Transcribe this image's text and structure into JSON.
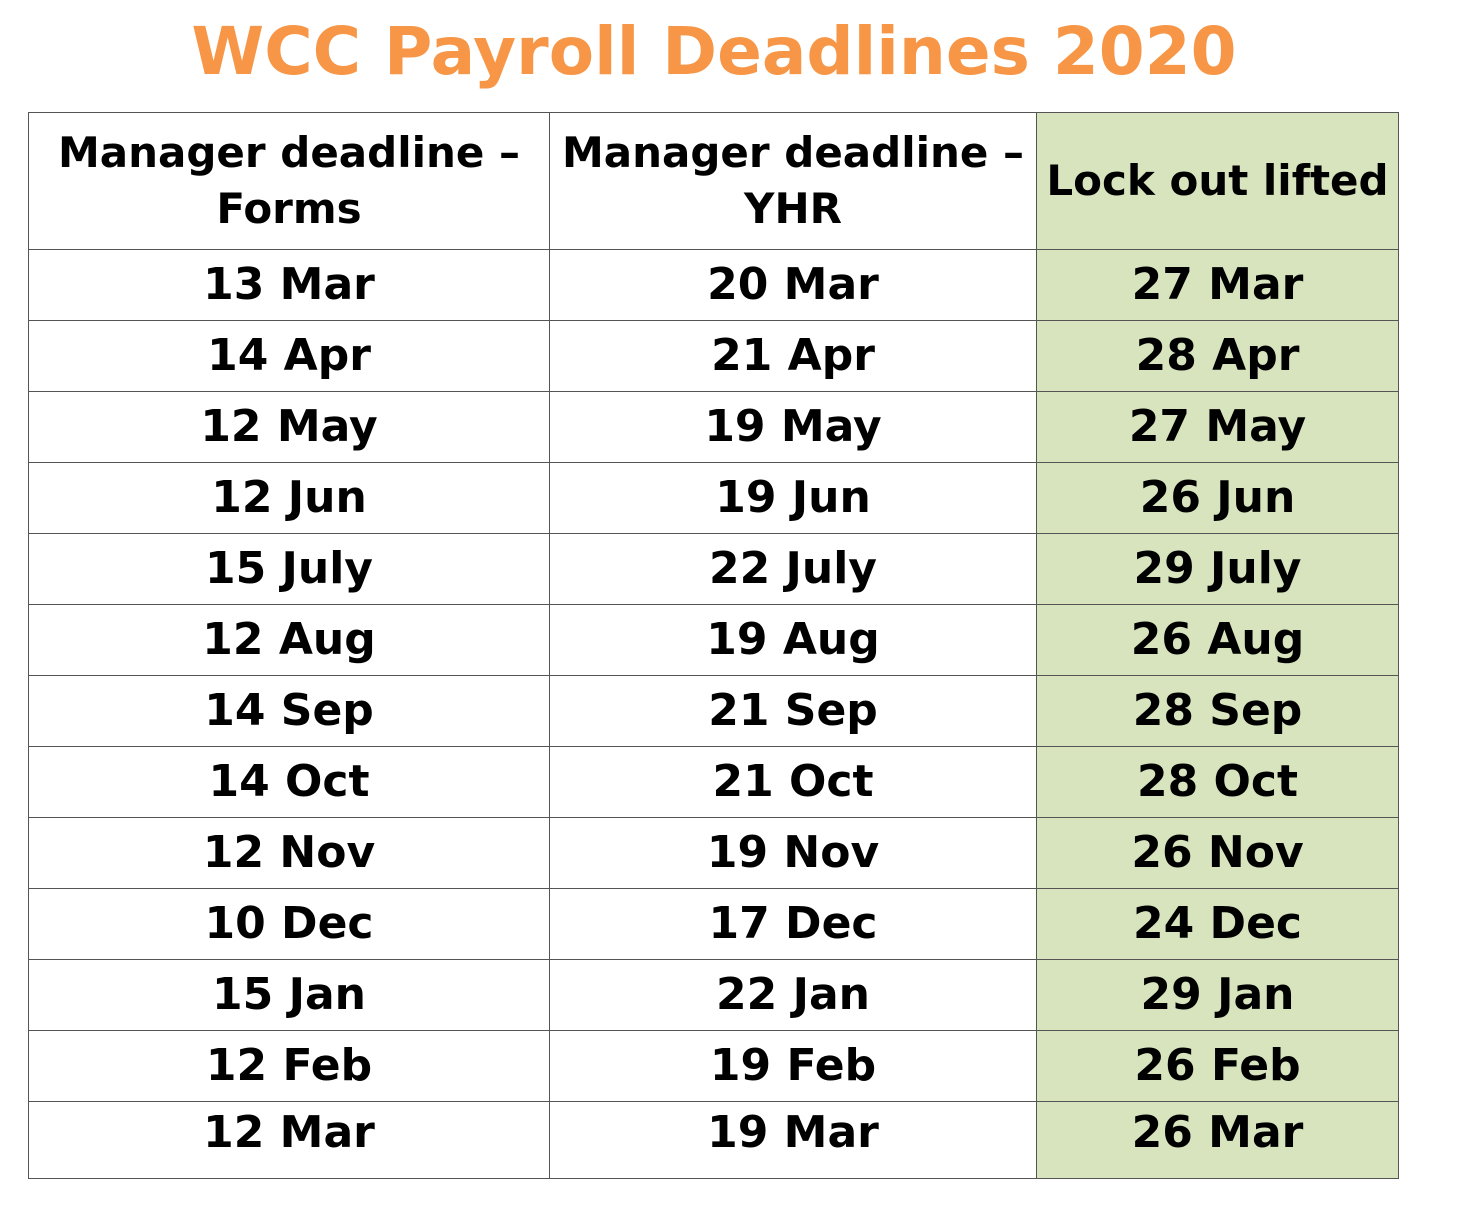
{
  "title": "WCC Payroll Deadlines 2020",
  "colors": {
    "title": "#f79646",
    "lockout_column": "#d7e4bd",
    "border": "#555555"
  },
  "table": {
    "headers": [
      "Manager deadline – Forms",
      "Manager deadline – YHR",
      "Lock out lifted"
    ],
    "rows": [
      [
        "13 Mar",
        "20 Mar",
        "27 Mar"
      ],
      [
        "14 Apr",
        "21 Apr",
        "28 Apr"
      ],
      [
        "12 May",
        "19 May",
        "27 May"
      ],
      [
        "12 Jun",
        "19 Jun",
        "26 Jun"
      ],
      [
        "15 July",
        "22 July",
        "29 July"
      ],
      [
        "12 Aug",
        "19 Aug",
        "26 Aug"
      ],
      [
        "14 Sep",
        "21 Sep",
        "28 Sep"
      ],
      [
        "14 Oct",
        "21 Oct",
        "28 Oct"
      ],
      [
        "12 Nov",
        "19 Nov",
        "26 Nov"
      ],
      [
        "10 Dec",
        "17 Dec",
        "24 Dec"
      ],
      [
        "15 Jan",
        "22 Jan",
        "29 Jan"
      ],
      [
        "12 Feb",
        "19 Feb",
        "26 Feb"
      ],
      [
        "12 Mar",
        "19 Mar",
        "26 Mar"
      ]
    ]
  }
}
